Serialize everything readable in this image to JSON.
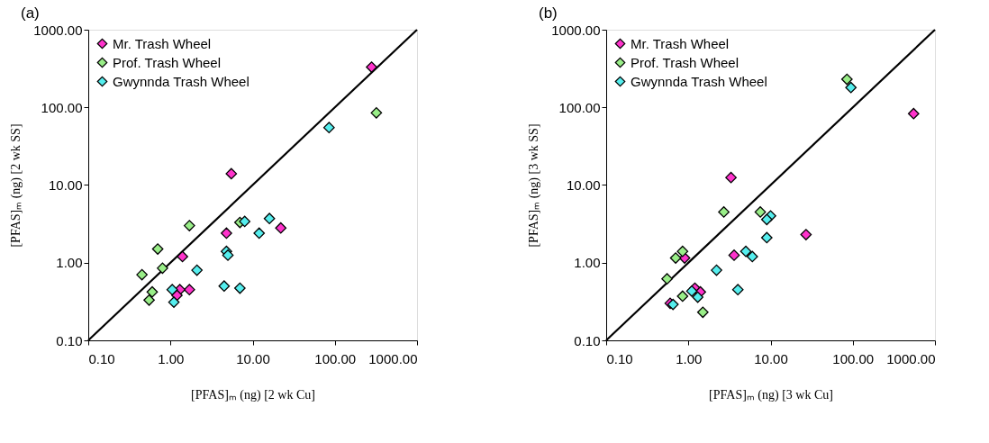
{
  "chart_data": [
    {
      "type": "scatter",
      "xlabel": "[PFAS]ₘ  (ng) [2 wk Cu]",
      "ylabel": "[PFAS]ₘ  (ng) [2 wk SS]",
      "annotations": [
        "(a)"
      ],
      "log": "xy",
      "grid": false,
      "legend": "top left",
      "marker": "diamond",
      "xlim": [
        0.1,
        1000
      ],
      "ylim": [
        0.1,
        1000
      ],
      "xticks": [
        {
          "value": 0.1,
          "label": "0.10"
        },
        {
          "value": 1,
          "label": "1.00"
        },
        {
          "value": 10,
          "label": "10.00"
        },
        {
          "value": 100,
          "label": "100.00"
        },
        {
          "value": 1000,
          "label": "1000.00"
        }
      ],
      "yticks": [
        {
          "value": 0.1,
          "label": "0.10"
        },
        {
          "value": 1,
          "label": "1.00"
        },
        {
          "value": 10,
          "label": "10.00"
        },
        {
          "value": 100,
          "label": "100.00"
        },
        {
          "value": 1000,
          "label": "1000.00"
        }
      ],
      "series": [
        {
          "name": "Mr. Trash Wheel",
          "color": "#ff33cc",
          "x": [
            280,
            5.5,
            4.8,
            22,
            1.4,
            1.7,
            1.3,
            1.2
          ],
          "values": [
            330,
            14,
            2.4,
            2.8,
            1.2,
            0.45,
            0.45,
            0.38
          ]
        },
        {
          "name": "Prof. Trash Wheel",
          "color": "#99ee88",
          "x": [
            320,
            1.7,
            7,
            0.7,
            0.8,
            0.45,
            0.6,
            0.55
          ],
          "values": [
            85,
            3.0,
            3.3,
            1.5,
            0.85,
            0.7,
            0.42,
            0.33
          ]
        },
        {
          "name": "Gwynnda Trash Wheel",
          "color": "#55eeee",
          "x": [
            85,
            8,
            16,
            12,
            4.8,
            5,
            2.1,
            4.5,
            7,
            1.05,
            1.1
          ],
          "values": [
            55,
            3.4,
            3.7,
            2.4,
            1.4,
            1.25,
            0.8,
            0.5,
            0.47,
            0.45,
            0.31
          ]
        },
        {
          "type": "line",
          "color": "#000000",
          "marker": "none",
          "x": [
            0.1,
            1000
          ],
          "values": [
            0.1,
            1000
          ]
        }
      ]
    },
    {
      "type": "scatter",
      "xlabel": "[PFAS]ₘ  (ng) [3 wk Cu]",
      "ylabel": "[PFAS]ₘ  (ng) [3 wk SS]",
      "annotations": [
        "(b)"
      ],
      "log": "xy",
      "grid": false,
      "legend": "top left",
      "marker": "diamond",
      "xlim": [
        0.1,
        1000
      ],
      "ylim": [
        0.1,
        1000
      ],
      "xticks": [
        {
          "value": 0.1,
          "label": "0.10"
        },
        {
          "value": 1,
          "label": "1.00"
        },
        {
          "value": 10,
          "label": "10.00"
        },
        {
          "value": 100,
          "label": "100.00"
        },
        {
          "value": 1000,
          "label": "1000.00"
        }
      ],
      "yticks": [
        {
          "value": 0.1,
          "label": "0.10"
        },
        {
          "value": 1,
          "label": "1.00"
        },
        {
          "value": 10,
          "label": "10.00"
        },
        {
          "value": 100,
          "label": "100.00"
        },
        {
          "value": 1000,
          "label": "1000.00"
        }
      ],
      "series": [
        {
          "name": "Mr. Trash Wheel",
          "color": "#ff33cc",
          "x": [
            550,
            3.3,
            27,
            3.6,
            0.9,
            1.2,
            1.4,
            0.6
          ],
          "values": [
            83,
            12.5,
            2.3,
            1.25,
            1.15,
            0.47,
            0.42,
            0.3
          ]
        },
        {
          "name": "Prof. Trash Wheel",
          "color": "#99ee88",
          "x": [
            85,
            2.7,
            7.5,
            0.85,
            0.7,
            0.55,
            0.85,
            1.5
          ],
          "values": [
            230,
            4.5,
            4.5,
            1.4,
            1.15,
            0.62,
            0.37,
            0.23
          ]
        },
        {
          "name": "Gwynnda Trash Wheel",
          "color": "#55eeee",
          "x": [
            95,
            10,
            9,
            9,
            5,
            6,
            2.2,
            4,
            1.1,
            1.3,
            0.65
          ],
          "values": [
            180,
            4.0,
            3.6,
            2.1,
            1.4,
            1.2,
            0.8,
            0.45,
            0.43,
            0.36,
            0.29
          ]
        },
        {
          "type": "line",
          "color": "#000000",
          "marker": "none",
          "x": [
            0.1,
            1000
          ],
          "values": [
            0.1,
            1000
          ]
        }
      ]
    }
  ]
}
